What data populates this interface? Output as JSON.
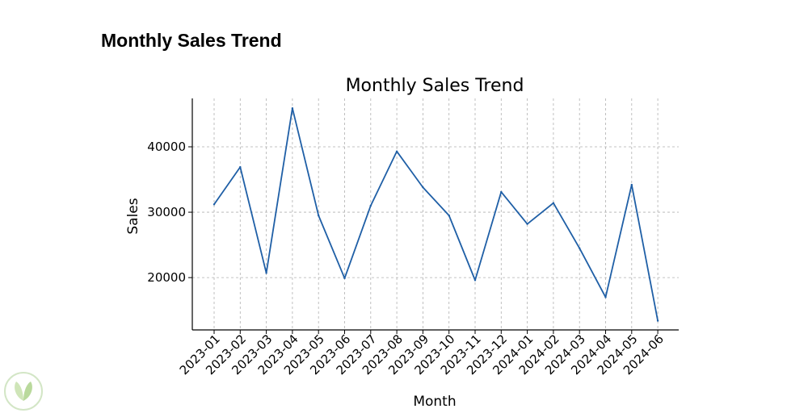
{
  "page": {
    "title": "Monthly Sales Trend"
  },
  "chart_data": {
    "type": "line",
    "title": "Monthly Sales Trend",
    "xlabel": "Month",
    "ylabel": "Sales",
    "categories": [
      "2023-01",
      "2023-02",
      "2023-03",
      "2023-04",
      "2023-05",
      "2023-06",
      "2023-07",
      "2023-08",
      "2023-09",
      "2023-10",
      "2023-11",
      "2023-12",
      "2024-01",
      "2024-02",
      "2024-03",
      "2024-04",
      "2024-05",
      "2024-06"
    ],
    "series": [
      {
        "values": [
          31200,
          36900,
          20700,
          45900,
          29500,
          19900,
          31000,
          39300,
          33800,
          29500,
          19600,
          33100,
          28200,
          31400,
          24500,
          17000,
          34200,
          13400
        ]
      }
    ],
    "yticks": [
      20000,
      30000,
      40000
    ],
    "ylim": [
      12000,
      47400
    ],
    "grid": true,
    "legend": "none",
    "line_color": "#1f5fa6"
  },
  "icons": {
    "logo": "leaf-badge-icon"
  }
}
